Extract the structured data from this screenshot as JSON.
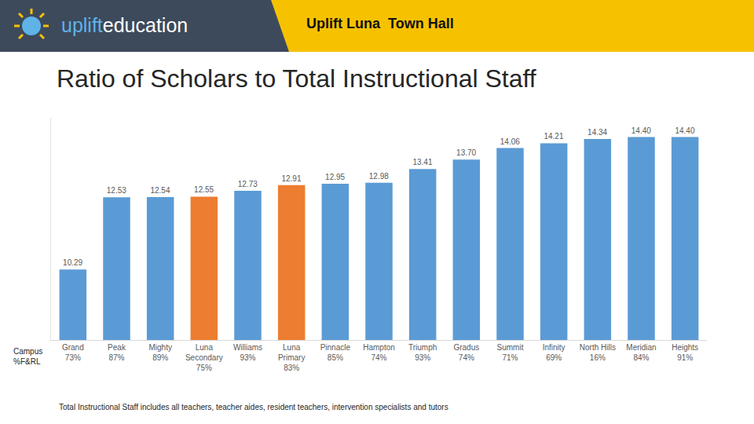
{
  "header": {
    "brand": [
      "uplift",
      "education"
    ],
    "title": "Uplift Luna  Town Hall"
  },
  "chart_data": {
    "type": "bar",
    "title": "Ratio of Scholars to Total Instructional Staff",
    "categories": [
      "Grand",
      "Peak",
      "Mighty",
      "Luna Secondary",
      "Williams",
      "Luna Primary",
      "Pinnacle",
      "Hampton",
      "Triumph",
      "Gradus",
      "Summit",
      "Infinity",
      "North Hills",
      "Meridian",
      "Heights"
    ],
    "category_notes": [
      "73%",
      "87%",
      "89%",
      "75%",
      "93%",
      "83%",
      "85%",
      "74%",
      "93%",
      "74%",
      "71%",
      "69%",
      "16%",
      "84%",
      "91%"
    ],
    "values": [
      10.29,
      12.53,
      12.54,
      12.55,
      12.73,
      12.91,
      12.95,
      12.98,
      13.41,
      13.7,
      14.06,
      14.21,
      14.34,
      14.4,
      14.4
    ],
    "value_labels": [
      "10.29",
      "12.53",
      "12.54",
      "12.55",
      "12.73",
      "12.91",
      "12.95",
      "12.98",
      "13.41",
      "13.70",
      "14.06",
      "14.21",
      "14.34",
      "14.40",
      "14.40"
    ],
    "colors": [
      "#5b9bd5",
      "#5b9bd5",
      "#5b9bd5",
      "#ed7d31",
      "#5b9bd5",
      "#ed7d31",
      "#5b9bd5",
      "#5b9bd5",
      "#5b9bd5",
      "#5b9bd5",
      "#5b9bd5",
      "#5b9bd5",
      "#5b9bd5",
      "#5b9bd5",
      "#5b9bd5"
    ],
    "xlabel": "Campus\n%F&RL",
    "note": "Total Instructional Staff includes all teachers, teacher aides, resident teachers, intervention specialists and tutors",
    "ylim": [
      8.1,
      15
    ],
    "yticks": [],
    "grid": false,
    "data_labels": true,
    "tick_labels": "x"
  }
}
